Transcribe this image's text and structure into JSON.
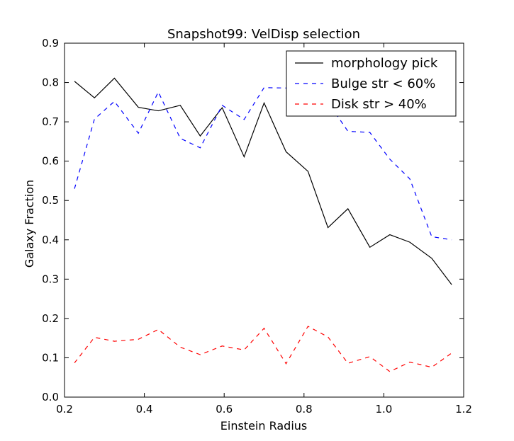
{
  "chart_data": {
    "type": "line",
    "title": "Snapshot99: VelDisp selection",
    "xlabel": "Einstein Radius",
    "ylabel": "Galaxy Fraction",
    "xlim": [
      0.2,
      1.2
    ],
    "ylim": [
      0.0,
      0.9
    ],
    "xticks": [
      "0.2",
      "0.4",
      "0.6",
      "0.8",
      "1.0",
      "1.2"
    ],
    "yticks": [
      "0.0",
      "0.1",
      "0.2",
      "0.3",
      "0.4",
      "0.5",
      "0.6",
      "0.7",
      "0.8",
      "0.9"
    ],
    "grid": false,
    "legend_position": "top-right",
    "x": [
      0.225,
      0.275,
      0.325,
      0.385,
      0.435,
      0.49,
      0.54,
      0.595,
      0.65,
      0.7,
      0.755,
      0.81,
      0.86,
      0.91,
      0.965,
      1.015,
      1.065,
      1.12,
      1.17
    ],
    "series": [
      {
        "name": "morphology pick",
        "color": "#000000",
        "dash": "solid",
        "values": [
          0.803,
          0.761,
          0.811,
          0.737,
          0.728,
          0.742,
          0.664,
          0.736,
          0.611,
          0.748,
          0.624,
          0.574,
          0.431,
          0.479,
          0.381,
          0.413,
          0.394,
          0.353,
          0.286
        ]
      },
      {
        "name": "Bulge str < 60%",
        "color": "#0000ff",
        "dash": "dashed",
        "values": [
          0.53,
          0.707,
          0.752,
          0.671,
          0.776,
          0.658,
          0.634,
          0.742,
          0.706,
          0.787,
          0.786,
          0.78,
          0.75,
          0.676,
          0.673,
          0.605,
          0.555,
          0.408,
          0.4
        ]
      },
      {
        "name": "Disk str > 40%",
        "color": "#ff0000",
        "dash": "dashed",
        "values": [
          0.087,
          0.152,
          0.142,
          0.147,
          0.172,
          0.127,
          0.108,
          0.13,
          0.12,
          0.175,
          0.085,
          0.18,
          0.153,
          0.086,
          0.103,
          0.065,
          0.089,
          0.076,
          0.112
        ]
      }
    ]
  }
}
